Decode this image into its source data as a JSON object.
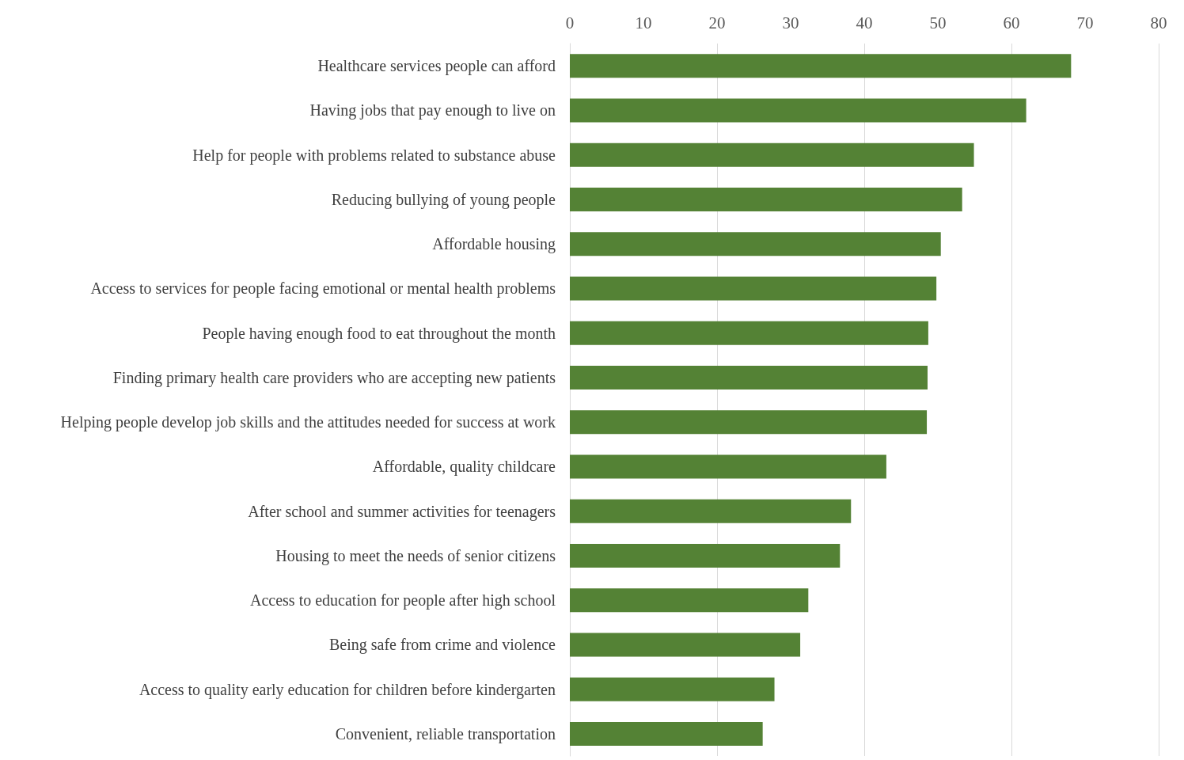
{
  "chart_data": {
    "type": "bar",
    "orientation": "horizontal",
    "categories": [
      "Healthcare services people can afford",
      "Having jobs that pay enough to live on",
      "Help for people with problems related to substance abuse",
      "Reducing bullying of young people",
      "Affordable housing",
      "Access to services for people facing emotional or mental health problems",
      "People having enough food to eat throughout the month",
      "Finding primary health care providers who are accepting new patients",
      "Helping people develop job skills and the attitudes needed for success at work",
      "Affordable, quality childcare",
      "After school and summer activities for teenagers",
      "Housing to meet the needs of senior citizens",
      "Access to education for people after high school",
      "Being safe from crime and violence",
      "Access to quality early education for children before kindergarten",
      "Convenient, reliable transportation"
    ],
    "values": [
      68.1,
      62,
      54.9,
      53.3,
      50.4,
      49.8,
      48.7,
      48.6,
      48.5,
      43,
      38.2,
      36.7,
      32.4,
      31.3,
      27.8,
      26.2
    ],
    "color": "#548235",
    "xlim": [
      0,
      80
    ],
    "xticks": [
      0,
      10,
      20,
      30,
      40,
      50,
      60,
      70,
      80
    ],
    "grid": "x"
  }
}
